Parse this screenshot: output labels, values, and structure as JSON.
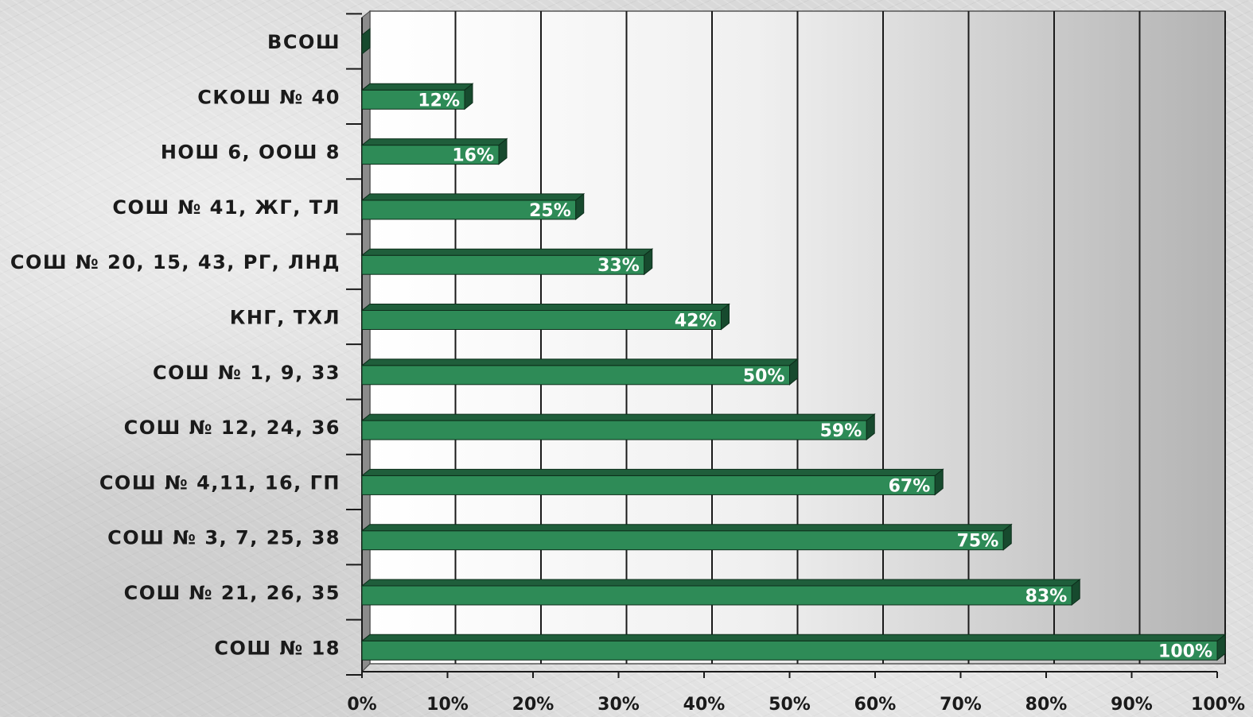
{
  "chart_data": {
    "type": "bar",
    "orientation": "horizontal",
    "categories": [
      "ВСОШ",
      "СКОШ № 40",
      "НОШ 6, ООШ 8",
      "СОШ № 41, ЖГ, ТЛ",
      "СОШ № 20, 15, 43, РГ, ЛНД",
      "КНГ, ТХЛ",
      "СОШ № 1, 9, 33",
      "СОШ № 12, 24, 36",
      "СОШ № 4,11, 16, ГП",
      "СОШ № 3, 7, 25, 38",
      "СОШ № 21, 26, 35",
      "СОШ № 18"
    ],
    "values": [
      0,
      12,
      16,
      25,
      33,
      42,
      50,
      59,
      67,
      75,
      83,
      100
    ],
    "data_labels": [
      "",
      "12%",
      "16%",
      "25%",
      "33%",
      "42%",
      "50%",
      "59%",
      "67%",
      "75%",
      "83%",
      "100%"
    ],
    "x_ticks": [
      "0%",
      "10%",
      "20%",
      "30%",
      "40%",
      "50%",
      "60%",
      "70%",
      "80%",
      "90%",
      "100%"
    ],
    "xlim": [
      0,
      100
    ],
    "grid": true,
    "title": "",
    "xlabel": "",
    "ylabel": "",
    "bar_color": "#2e8b57",
    "bar_top_color": "#1f5e3b",
    "bar_side_color": "#174a2e",
    "wall_color_left": "#ffffff",
    "wall_color_right": "#b3b3b3"
  }
}
